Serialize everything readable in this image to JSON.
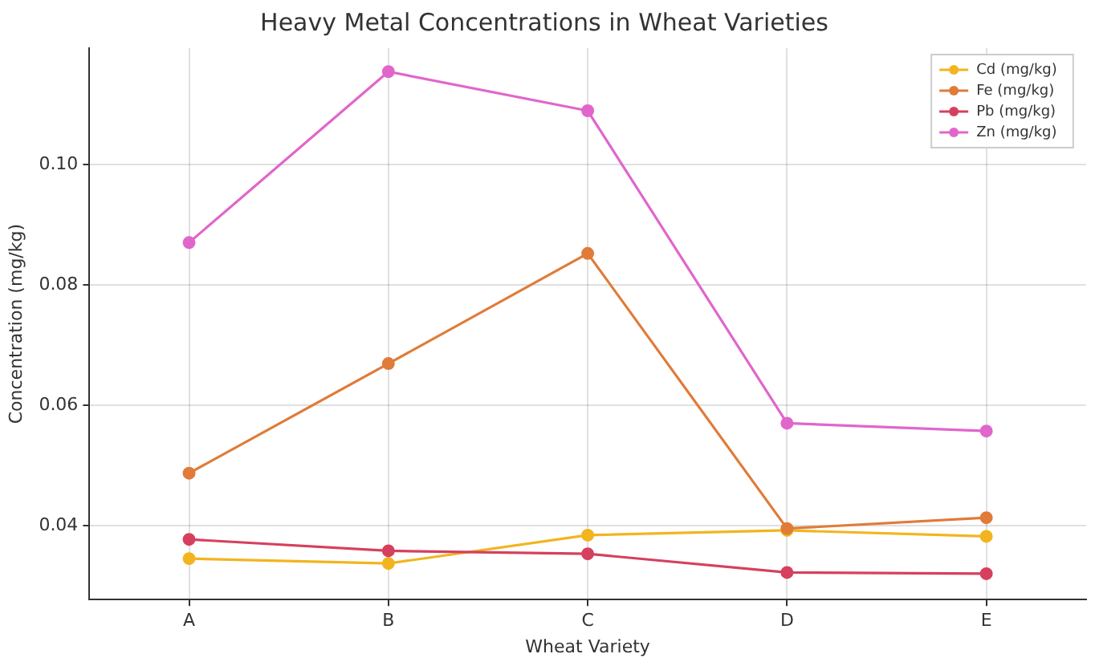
{
  "chart_data": {
    "type": "line",
    "title": "Heavy Metal Concentrations in Wheat Varieties",
    "xlabel": "Wheat Variety",
    "ylabel": "Concentration (mg/kg)",
    "categories": [
      "A",
      "B",
      "C",
      "D",
      "E"
    ],
    "series": [
      {
        "name": "Cd (mg/kg)",
        "color": "#f2b51f",
        "values": [
          0.0345,
          0.0337,
          0.0384,
          0.0392,
          0.0382
        ]
      },
      {
        "name": "Fe (mg/kg)",
        "color": "#e07b39",
        "values": [
          0.0487,
          0.0669,
          0.0852,
          0.0395,
          0.0413
        ]
      },
      {
        "name": "Pb (mg/kg)",
        "color": "#d6405e",
        "values": [
          0.0377,
          0.0358,
          0.0353,
          0.0322,
          0.032
        ]
      },
      {
        "name": "Zn (mg/kg)",
        "color": "#e066cc",
        "values": [
          0.087,
          0.1154,
          0.1089,
          0.057,
          0.0557
        ]
      }
    ],
    "ylim": [
      0.0277,
      0.1193
    ],
    "yticks": [
      {
        "value": 0.04,
        "label": "0.04"
      },
      {
        "value": 0.06,
        "label": "0.06"
      },
      {
        "value": 0.08,
        "label": "0.08"
      },
      {
        "value": 0.1,
        "label": "0.10"
      }
    ],
    "grid": true,
    "legend": "top right",
    "marker": "circle",
    "line_style": "solid"
  }
}
